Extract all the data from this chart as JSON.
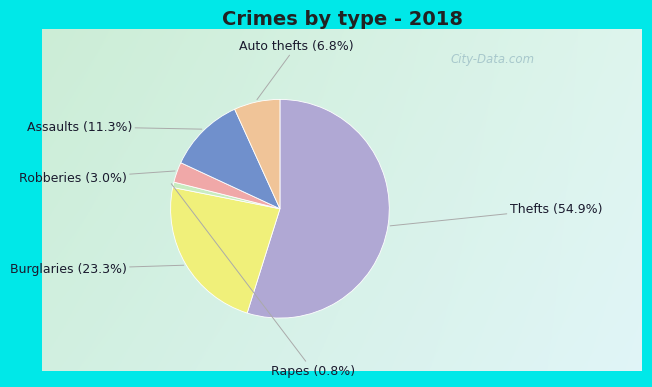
{
  "title": "Crimes by type - 2018",
  "values": [
    54.9,
    23.3,
    0.8,
    3.0,
    11.3,
    6.8
  ],
  "colors": [
    "#b0a8d4",
    "#f0f07a",
    "#c8ecc0",
    "#f0a8a8",
    "#7090cc",
    "#f0c498"
  ],
  "label_texts": [
    "Thefts (54.9%)",
    "Burglaries (23.3%)",
    "Rapes (0.8%)",
    "Robberies (3.0%)",
    "Assaults (11.3%)",
    "Auto thefts (6.8%)"
  ],
  "cyan_border": "#00e8e8",
  "title_fontsize": 14,
  "label_fontsize": 9,
  "watermark": "City-Data.com",
  "watermark_color": "#a8c8cc"
}
